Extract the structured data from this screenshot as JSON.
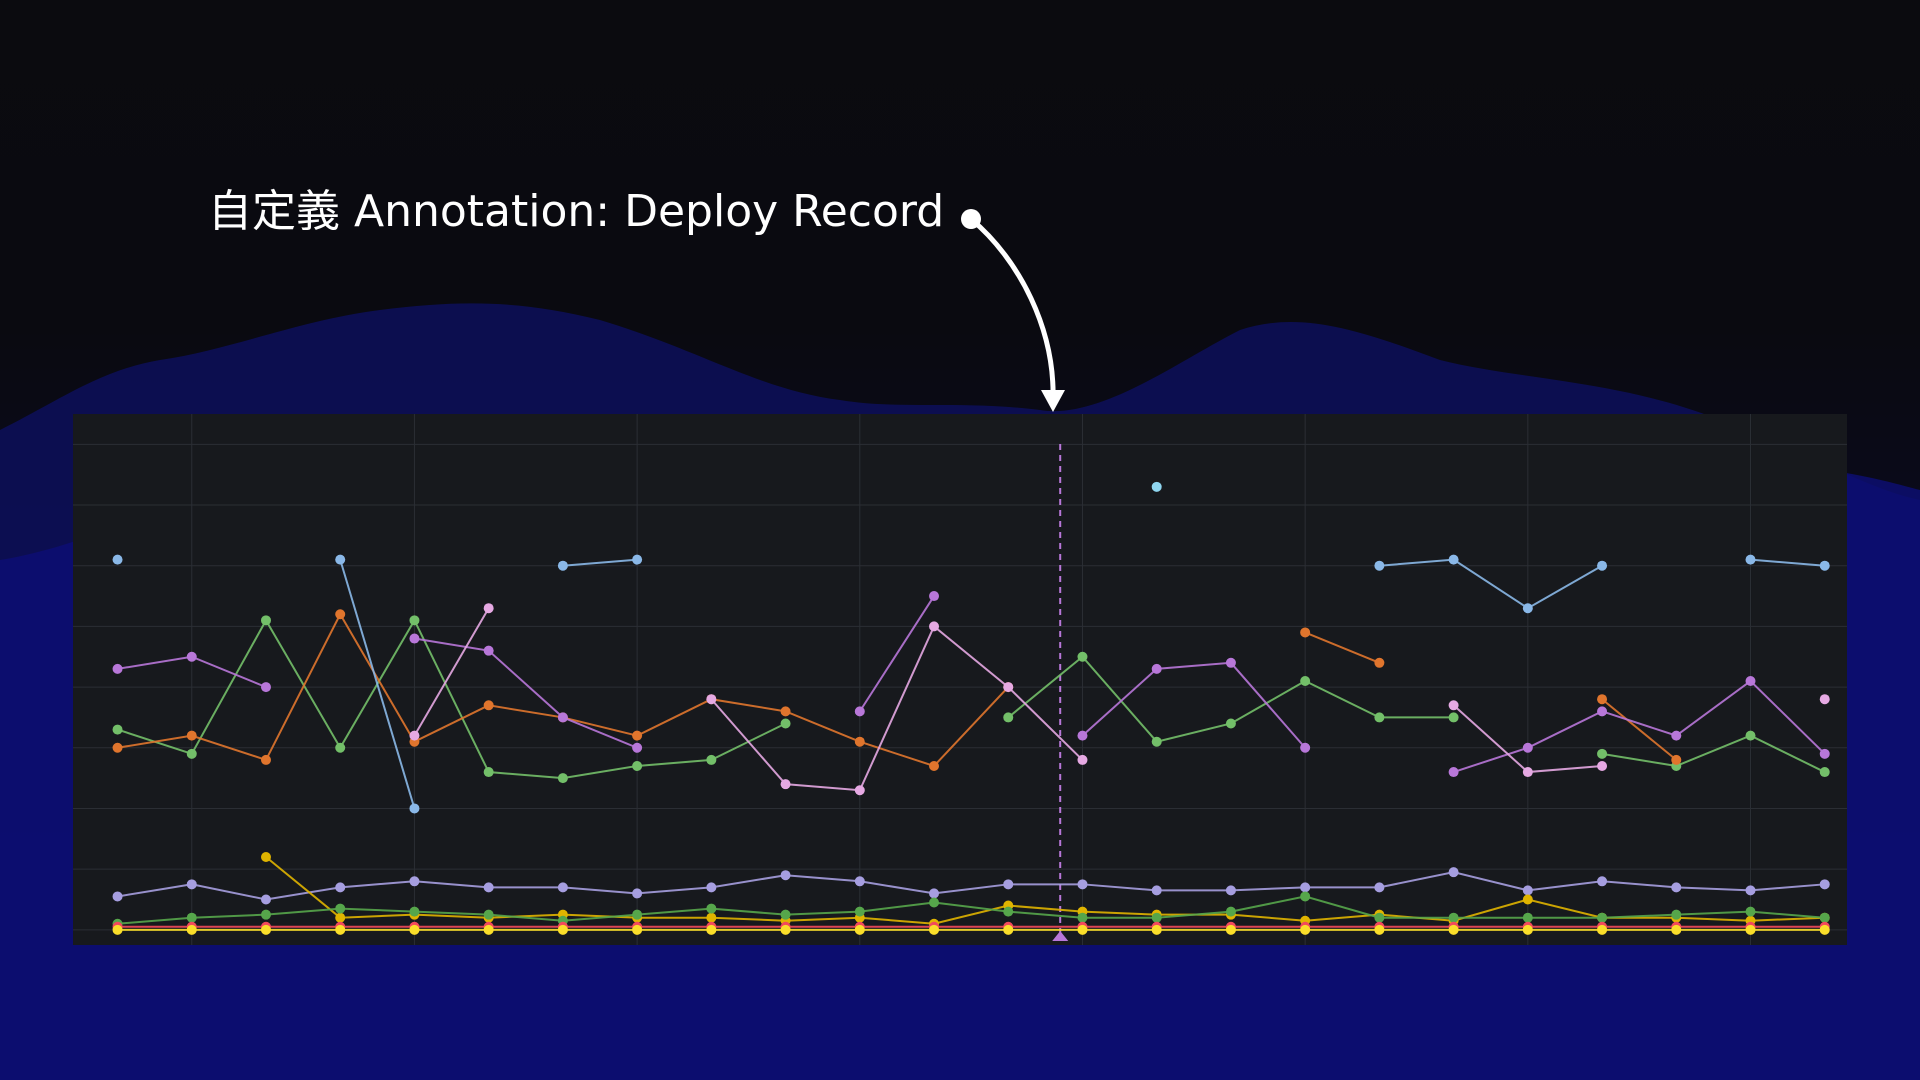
{
  "chart_data": {
    "type": "line",
    "annotation_label": "自定義 Annotation: Deploy Record",
    "annotation_x": 13.7,
    "x": [
      1,
      2,
      3,
      4,
      5,
      6,
      7,
      8,
      9,
      10,
      11,
      12,
      13,
      14,
      15,
      16,
      17,
      18,
      19,
      20,
      21,
      22,
      23,
      24
    ],
    "xlim": [
      0.4,
      24.3
    ],
    "xticks": [
      2,
      5,
      8,
      11,
      14,
      17,
      20,
      23
    ],
    "ylim": [
      -0.25,
      8.5
    ],
    "yticks": [
      0,
      1,
      2,
      3,
      4,
      5,
      6,
      7,
      8
    ],
    "grid": true,
    "series": [
      {
        "color": "#73bf69",
        "values": [
          3.3,
          2.9,
          5.1,
          3.0,
          5.1,
          2.6,
          2.5,
          2.7,
          2.8,
          3.4,
          null,
          null,
          3.5,
          4.5,
          3.1,
          3.4,
          4.1,
          3.5,
          3.5,
          null,
          2.9,
          2.7,
          3.2,
          2.6
        ]
      },
      {
        "color": "#e0752d",
        "values": [
          3.0,
          3.2,
          2.8,
          5.2,
          3.1,
          3.7,
          3.5,
          3.2,
          3.8,
          3.6,
          3.1,
          2.7,
          4.0,
          null,
          null,
          null,
          4.9,
          4.4,
          null,
          null,
          3.8,
          2.8,
          null,
          null
        ]
      },
      {
        "color": "#b877d9",
        "values": [
          4.3,
          4.5,
          4.0,
          null,
          4.8,
          4.6,
          3.5,
          3.0,
          null,
          null,
          3.6,
          5.5,
          null,
          3.2,
          4.3,
          4.4,
          3.0,
          null,
          2.6,
          3.0,
          3.6,
          3.2,
          4.1,
          2.9
        ]
      },
      {
        "color": "#e6a9e3",
        "values": [
          null,
          null,
          null,
          null,
          3.2,
          5.3,
          null,
          null,
          3.8,
          2.4,
          2.3,
          5.0,
          4.0,
          2.8,
          null,
          null,
          null,
          null,
          3.7,
          2.6,
          2.7,
          null,
          null,
          3.8
        ]
      },
      {
        "color": "#8ab8e8",
        "values": [
          6.1,
          null,
          null,
          6.1,
          2.0,
          null,
          6.0,
          6.1,
          null,
          null,
          null,
          null,
          null,
          null,
          null,
          null,
          null,
          6.0,
          6.1,
          5.3,
          6.0,
          null,
          6.1,
          6.0
        ]
      },
      {
        "color": "#a69ee0",
        "values": [
          0.55,
          0.75,
          0.5,
          0.7,
          0.8,
          0.7,
          0.7,
          0.6,
          0.7,
          0.9,
          0.8,
          0.6,
          0.75,
          0.75,
          0.65,
          0.65,
          0.7,
          0.7,
          0.95,
          0.65,
          0.8,
          0.7,
          0.65,
          0.75
        ]
      },
      {
        "color": "#e0b400",
        "values": [
          null,
          null,
          1.2,
          0.2,
          0.25,
          0.2,
          0.25,
          0.2,
          0.2,
          0.15,
          0.2,
          0.1,
          0.4,
          0.3,
          0.25,
          0.25,
          0.15,
          0.25,
          0.15,
          0.5,
          0.2,
          0.2,
          0.15,
          0.2
        ]
      },
      {
        "color": "#56a64b",
        "values": [
          0.1,
          0.2,
          0.25,
          0.35,
          0.3,
          0.25,
          0.15,
          0.25,
          0.35,
          0.25,
          0.3,
          0.45,
          0.3,
          0.2,
          0.2,
          0.3,
          0.55,
          0.2,
          0.2,
          0.2,
          0.2,
          0.25,
          0.3,
          0.2
        ]
      },
      {
        "color": "#f2495c",
        "values": [
          0.05,
          0.05,
          0.05,
          0.05,
          0.05,
          0.05,
          0.05,
          0.05,
          0.05,
          0.05,
          0.05,
          0.05,
          0.05,
          0.05,
          0.05,
          0.05,
          0.05,
          0.05,
          0.05,
          0.05,
          0.05,
          0.05,
          0.05,
          0.05
        ]
      },
      {
        "color": "#fade2a",
        "values": [
          0.0,
          0.0,
          0.0,
          0.0,
          0.0,
          0.0,
          0.0,
          0.0,
          0.0,
          0.0,
          0.0,
          0.0,
          0.0,
          0.0,
          0.0,
          0.0,
          0.0,
          0.0,
          0.0,
          0.0,
          0.0,
          0.0,
          0.0,
          0.0
        ]
      },
      {
        "color": "#8fd6f0",
        "values": [
          null,
          null,
          null,
          null,
          null,
          null,
          null,
          null,
          null,
          null,
          null,
          null,
          null,
          null,
          7.3,
          null,
          null,
          null,
          null,
          null,
          null,
          null,
          null,
          null
        ]
      }
    ]
  }
}
